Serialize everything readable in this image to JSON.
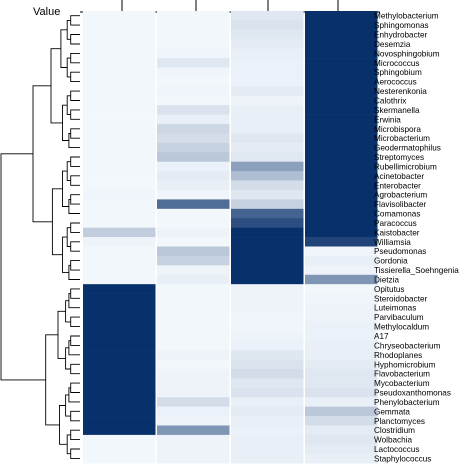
{
  "chart_data": {
    "type": "heatmap",
    "legend_title": "Value",
    "columns": [
      "",
      "",
      "",
      ""
    ],
    "row_labels": [
      "Methylobacterium",
      "Sphingomonas",
      "Enhydrobacter",
      "Desemzia",
      "Novosphingobium",
      "Micrococcus",
      "Sphingobium",
      "Aerococcus",
      "Nesterenkonia",
      "Calothrix",
      "Skermanella",
      "Erwinia",
      "Microbispora",
      "Microbacterium",
      "Geodermatophilus",
      "Streptomyces",
      "Rubellimicrobium",
      "Acinetobacter",
      "Enterobacter",
      "Agrobacterium",
      "Flavisolibacter",
      "Comamonas",
      "Paracoccus",
      "Kaistobacter",
      "Williamsia",
      "Pseudomonas",
      "Gordonia",
      "Tissierella_Soehngenia",
      "Dietzia",
      "Opitutus",
      "Steroidobacter",
      "Luteimonas",
      "Parvibaculum",
      "Methylocaldum",
      "A17",
      "Chryseobacterium",
      "Rhodoplanes",
      "Hyphomicrobium",
      "Flavobacterium",
      "Mycobacterium",
      "Pseudoxanthomonas",
      "Phenylobacterium",
      "Gemmata",
      "Planctomyces",
      "Clostridium",
      "Wolbachia",
      "Lactococcus",
      "Staphylococcus"
    ],
    "values": [
      [
        0.02,
        0.02,
        0.1,
        1.0
      ],
      [
        0.02,
        0.02,
        0.12,
        1.0
      ],
      [
        0.02,
        0.02,
        0.1,
        1.0
      ],
      [
        0.02,
        0.02,
        0.08,
        1.0
      ],
      [
        0.02,
        0.03,
        0.06,
        1.0
      ],
      [
        0.02,
        0.1,
        0.05,
        1.0
      ],
      [
        0.02,
        0.03,
        0.05,
        1.0
      ],
      [
        0.02,
        0.02,
        0.05,
        1.0
      ],
      [
        0.02,
        0.03,
        0.08,
        1.0
      ],
      [
        0.02,
        0.02,
        0.04,
        1.0
      ],
      [
        0.02,
        0.12,
        0.06,
        1.0
      ],
      [
        0.02,
        0.06,
        0.06,
        1.0
      ],
      [
        0.02,
        0.18,
        0.06,
        1.0
      ],
      [
        0.02,
        0.15,
        0.1,
        1.0
      ],
      [
        0.02,
        0.2,
        0.08,
        1.0
      ],
      [
        0.02,
        0.25,
        0.1,
        1.0
      ],
      [
        0.02,
        0.05,
        0.45,
        1.0
      ],
      [
        0.02,
        0.08,
        0.3,
        1.0
      ],
      [
        0.02,
        0.06,
        0.15,
        1.0
      ],
      [
        0.03,
        0.03,
        0.1,
        1.0
      ],
      [
        0.02,
        0.7,
        0.2,
        1.0
      ],
      [
        0.02,
        0.02,
        0.75,
        1.0
      ],
      [
        0.02,
        0.02,
        0.85,
        1.0
      ],
      [
        0.22,
        0.04,
        1.0,
        1.0
      ],
      [
        0.04,
        0.02,
        1.0,
        0.9
      ],
      [
        0.02,
        0.25,
        1.0,
        0.03
      ],
      [
        0.02,
        0.2,
        1.0,
        0.06
      ],
      [
        0.02,
        0.04,
        1.0,
        0.04
      ],
      [
        0.02,
        0.06,
        1.0,
        0.5
      ],
      [
        1.0,
        0.02,
        0.04,
        0.02
      ],
      [
        1.0,
        0.02,
        0.04,
        0.03
      ],
      [
        1.0,
        0.02,
        0.04,
        0.04
      ],
      [
        1.0,
        0.02,
        0.03,
        0.04
      ],
      [
        1.0,
        0.02,
        0.03,
        0.05
      ],
      [
        1.0,
        0.02,
        0.04,
        0.05
      ],
      [
        1.0,
        0.02,
        0.05,
        0.06
      ],
      [
        1.0,
        0.04,
        0.1,
        0.06
      ],
      [
        1.0,
        0.02,
        0.12,
        0.08
      ],
      [
        1.0,
        0.04,
        0.15,
        0.1
      ],
      [
        1.0,
        0.04,
        0.1,
        0.1
      ],
      [
        1.0,
        0.04,
        0.12,
        0.12
      ],
      [
        1.0,
        0.15,
        0.06,
        0.06
      ],
      [
        1.0,
        0.05,
        0.08,
        0.25
      ],
      [
        1.0,
        0.04,
        0.06,
        0.15
      ],
      [
        1.0,
        0.5,
        0.05,
        0.08
      ],
      [
        0.02,
        0.04,
        0.06,
        0.1
      ],
      [
        0.02,
        0.04,
        0.06,
        0.08
      ],
      [
        0.02,
        0.04,
        0.06,
        0.06
      ]
    ],
    "color_range": [
      "#f7fbff",
      "#08306b"
    ],
    "legend": "top-left"
  }
}
